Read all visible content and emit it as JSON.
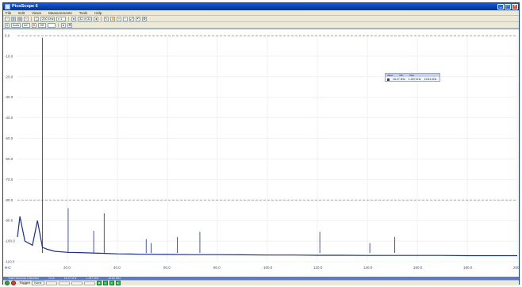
{
  "window": {
    "title": "PicoScope 6"
  },
  "menu": [
    "File",
    "Edit",
    "Views",
    "Measurements",
    "Tools",
    "Help"
  ],
  "toolbar1": {
    "timebase": "200 kHz",
    "samples": "x 1",
    "capture_count": "32 of 32"
  },
  "toolbar2": {
    "channel_a_range": "Auto",
    "coupling": "AC",
    "channel_b": "Off"
  },
  "plot": {
    "trace_color": "#1b2f8a",
    "dashed_line_color": "#8a8a8a",
    "y_ticks": [
      "0.0",
      "-10.0",
      "-20.0",
      "-30.0",
      "-40.0",
      "-50.0",
      "-60.0",
      "-70.0",
      "-80.0",
      "-90.0",
      "-100.0",
      "-110.0"
    ],
    "x_ticks": [
      "20.0",
      "40.0",
      "60.0",
      "80.0",
      "100.0",
      "120.0",
      "140.0",
      "160.0",
      "180.0",
      "200.0"
    ],
    "x_unit": "kHz",
    "y_unit": "dB"
  },
  "measurement": {
    "header": [
      "Value",
      "Min",
      "Max"
    ],
    "value": "16.27 kHz",
    "min": "1.267 kHz",
    "max": "13.81 kHz"
  },
  "measbar": [
    "Total Harmonic Distortion",
    "Ch A",
    "16.27 kHz",
    "1.267 kHz",
    "13.81 kHz"
  ],
  "status": {
    "trigger_label": "Trigger",
    "trigger_mode": "None"
  },
  "chart_data": {
    "type": "line",
    "title": "",
    "xlabel": "",
    "ylabel": "",
    "x_unit": "kHz",
    "y_unit": "dB",
    "xlim": [
      0,
      200
    ],
    "ylim": [
      -110,
      0
    ],
    "series": [
      {
        "x": [
          0,
          1,
          3,
          6,
          8,
          10,
          12,
          15,
          20,
          25,
          30,
          35,
          40,
          45,
          50,
          60,
          70,
          80,
          90,
          100,
          110,
          120,
          130,
          140,
          150,
          160,
          170,
          180,
          190,
          200
        ],
        "values": [
          -98,
          -88,
          -100,
          -102,
          -90,
          -103,
          -104,
          -105,
          -105.5,
          -105.6,
          -105.8,
          -106,
          -106.2,
          -106.3,
          -106.4,
          -106.5,
          -106.6,
          -106.6,
          -106.7,
          -106.8,
          -106.8,
          -106.9,
          -106.9,
          -107,
          -107,
          -107,
          -107,
          -107.1,
          -107.1,
          -107.1
        ]
      }
    ],
    "peaks": [
      {
        "x": 10.0,
        "y": -1.0
      },
      {
        "x": 20.3,
        "y": -84.0
      },
      {
        "x": 30.5,
        "y": -95.0
      },
      {
        "x": 34.7,
        "y": -86.5
      },
      {
        "x": 51.5,
        "y": -99.0
      },
      {
        "x": 53.5,
        "y": -101.0
      },
      {
        "x": 64.0,
        "y": -98.0
      },
      {
        "x": 73.0,
        "y": -95.5
      },
      {
        "x": 121.0,
        "y": -95.5
      },
      {
        "x": 141.0,
        "y": -101.0
      },
      {
        "x": 151.0,
        "y": -98.0
      }
    ],
    "reference_lines_y": [
      0.0,
      -80.0
    ]
  }
}
